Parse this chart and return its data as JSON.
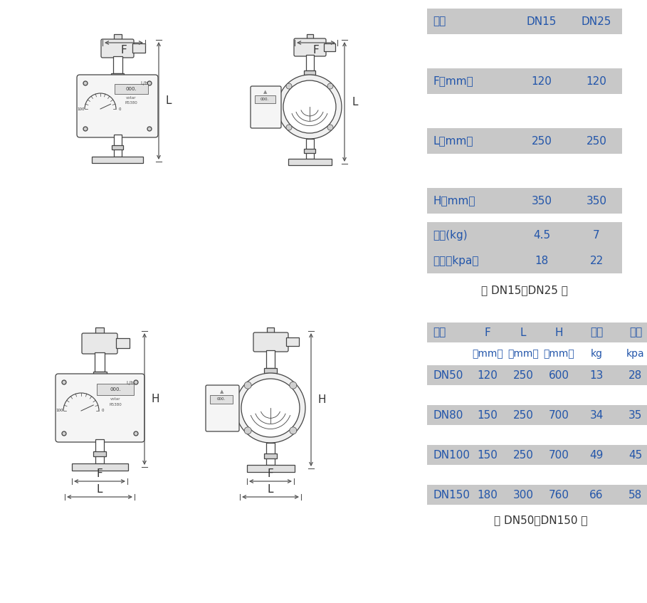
{
  "bg_color": "#ffffff",
  "cell_bg": "#c8c8c8",
  "text_color_blue": "#2255aa",
  "text_color_dark": "#333333",
  "line_color": "#666666",
  "t1_header": [
    "口径",
    "DN15",
    "DN25"
  ],
  "t1_col_labels": [
    "F（mm）",
    "L（mm）",
    "H（mm）",
    "重量(kg)",
    "压损（kpa）"
  ],
  "t1_col1": [
    "120",
    "250",
    "350",
    "4.5",
    "18"
  ],
  "t1_col2": [
    "120",
    "250",
    "350",
    "7",
    "22"
  ],
  "t1_label": "（ DN15～DN25 ）",
  "t2_header": [
    "口径",
    "F",
    "L",
    "H",
    "重量",
    "压损"
  ],
  "t2_subheader": [
    "",
    "（mm）",
    "（mm）",
    "（mm）",
    "kg",
    "kpa"
  ],
  "t2_rows": [
    [
      "DN50",
      "120",
      "250",
      "600",
      "13",
      "28"
    ],
    [
      "DN80",
      "150",
      "250",
      "700",
      "34",
      "35"
    ],
    [
      "DN100",
      "150",
      "250",
      "700",
      "49",
      "45"
    ],
    [
      "DN150",
      "180",
      "300",
      "760",
      "66",
      "58"
    ]
  ],
  "t2_label": "（ DN50～DN150 ）",
  "fig_width": 9.09,
  "fig_height": 8.47,
  "dpi": 100
}
